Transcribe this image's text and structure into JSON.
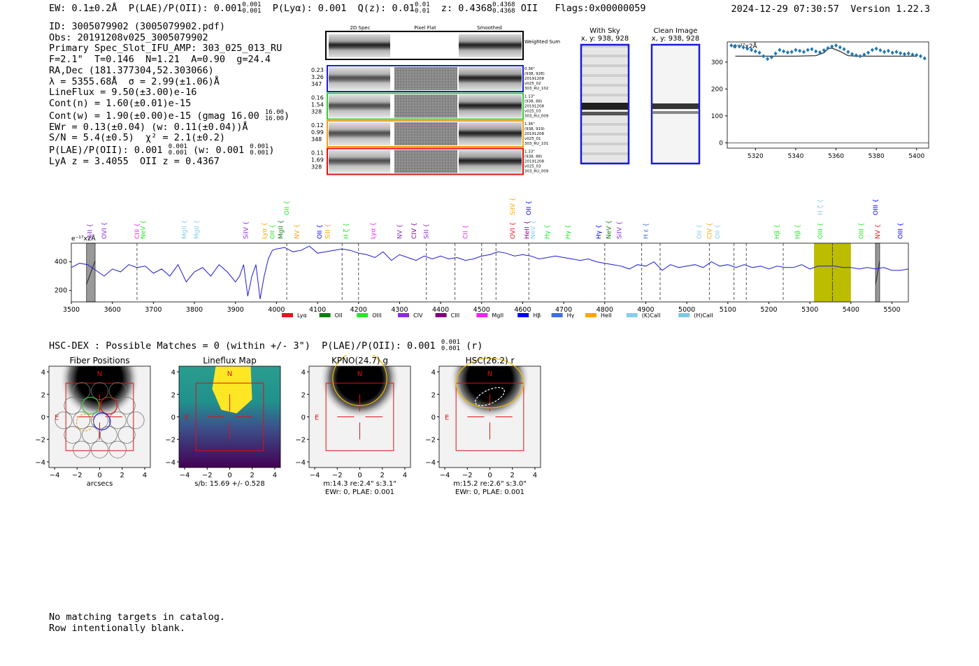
{
  "header": {
    "ew": "EW: 0.1±0.2Å",
    "plae_label": "P(LAE)/P(OII): 0.001",
    "plae_hi": "0.001",
    "plae_lo": "0.001",
    "plya": "P(Lyα): 0.001",
    "qz_label": "Q(z): 0.01",
    "qz_hi": "0.01",
    "qz_lo": "0.01",
    "z_label": "z: 0.4368",
    "z_hi": "0.4368",
    "z_lo": "0.4368",
    "z_line": "OII",
    "flags": "Flags:0x00000059",
    "timestamp": "2024-12-29 07:30:57",
    "version": "Version 1.22.3"
  },
  "info": {
    "id": "ID: 3005079902 (3005079902.pdf)",
    "obs": "Obs: 20191208v025_3005079902",
    "primary": "Primary Spec_Slot_IFU_AMP: 303_025_013_RU",
    "fit": "F=2.1\"  T=0.146  N=1.21  A=0.90  g=24.4",
    "radec": "RA,Dec (181.377304,52.303066)",
    "lambda": "λ = 5355.68Å  σ = 2.99(±1.06)Å",
    "lineflux": "LineFlux = 9.50(±3.00)e-16",
    "contn": "Cont(n) = 1.60(±0.01)e-15",
    "contw": "Cont(w) = 1.90(±0.00)e-15 (gmag 16.00",
    "contw_hi": "16.00",
    "contw_lo": "16.00",
    "ewr": "EWr = 0.13(±0.04) (w: 0.11(±0.04))Å",
    "sn": "S/N = 5.4(±0.5)  χ² = 2.1(±0.2)",
    "plae": "P(LAE)/P(OII): 0.001",
    "plae_hi": "0.001",
    "plae_lo": "0.001",
    "plae_w": "(w: 0.001",
    "plae_w_hi": "0.001",
    "plae_w_lo": "0.001",
    "lya": "LyA z = 3.4055  OII z = 0.4367"
  },
  "cutouts": {
    "headers": [
      "2D Spec",
      "Pixel Flat",
      "Smoothed"
    ],
    "weighted_sum": "Weighted Sum",
    "rows": [
      {
        "color": "#1c1cd6",
        "left": [
          "0.23",
          "3.26",
          "347"
        ],
        "right": [
          "0.36\"",
          "(938, 928)",
          "20191208",
          "v025_02",
          "303_RU_102"
        ]
      },
      {
        "color": "#33cc33",
        "left": [
          "0.16",
          "1.54",
          "328"
        ],
        "right": [
          "1.13\"",
          "(938, 88)",
          "20191208",
          "v025_03",
          "303_RU_009"
        ]
      },
      {
        "color": "#f0a020",
        "left": [
          "0.12",
          "0.99",
          "348"
        ],
        "right": [
          "1.36\"",
          "(938, 919)",
          "20191208",
          "v025_01",
          "303_RU_101"
        ]
      },
      {
        "color": "#e01010",
        "left": [
          "0.11",
          "1.69",
          "328"
        ],
        "right": [
          "1.33\"",
          "(938, 88)",
          "20191208",
          "v025_03",
          "303_RU_009"
        ]
      }
    ],
    "with_sky": "With Sky",
    "clean": "Clean Image",
    "xy": "x, y: 938, 928"
  },
  "zoom_chart": {
    "type": "scatter",
    "unit": "e⁻¹⁷x2Å",
    "xticks": [
      "5320",
      "5340",
      "5360",
      "5380",
      "5400"
    ],
    "yticks": [
      "0",
      "100",
      "200",
      "300"
    ],
    "xlim": [
      5306,
      5406
    ],
    "ylim": [
      -20,
      375
    ],
    "x": [
      5308,
      5310,
      5312,
      5314,
      5316,
      5318,
      5320,
      5322,
      5324,
      5326,
      5328,
      5330,
      5332,
      5334,
      5336,
      5338,
      5340,
      5342,
      5344,
      5346,
      5348,
      5350,
      5352,
      5354,
      5356,
      5358,
      5360,
      5362,
      5364,
      5366,
      5368,
      5370,
      5372,
      5374,
      5376,
      5378,
      5380,
      5382,
      5384,
      5386,
      5388,
      5390,
      5392,
      5394,
      5396,
      5398,
      5400,
      5402,
      5404
    ],
    "y": [
      362,
      360,
      358,
      355,
      350,
      345,
      340,
      335,
      322,
      312,
      318,
      332,
      345,
      340,
      336,
      338,
      345,
      342,
      338,
      345,
      348,
      340,
      336,
      344,
      352,
      358,
      362,
      355,
      348,
      338,
      330,
      325,
      322,
      328,
      335,
      345,
      350,
      344,
      338,
      342,
      335,
      338,
      333,
      330,
      332,
      328,
      326,
      322,
      314
    ],
    "model_x": [
      5310,
      5340,
      5350,
      5354,
      5356,
      5358,
      5362,
      5366,
      5370,
      5400
    ],
    "model_y": [
      322,
      322,
      324,
      335,
      350,
      352,
      340,
      324,
      322,
      322
    ]
  },
  "chart_data": {
    "type": "line",
    "unit": "e⁻¹⁷x2Å",
    "xlim": [
      3500,
      5540
    ],
    "ylim": [
      120,
      530
    ],
    "xticks": [
      "3500",
      "3600",
      "3700",
      "3800",
      "3900",
      "4000",
      "4100",
      "4200",
      "4300",
      "4400",
      "4500",
      "4600",
      "4700",
      "4800",
      "4900",
      "5000",
      "5100",
      "5200",
      "5300",
      "5400",
      "5500"
    ],
    "yticks": [
      "200",
      "400"
    ],
    "x": [
      3500,
      3520,
      3540,
      3560,
      3580,
      3600,
      3620,
      3640,
      3660,
      3680,
      3700,
      3720,
      3740,
      3760,
      3780,
      3800,
      3820,
      3840,
      3860,
      3880,
      3900,
      3910,
      3920,
      3930,
      3940,
      3950,
      3960,
      3970,
      3980,
      3990,
      4000,
      4020,
      4040,
      4060,
      4080,
      4100,
      4120,
      4140,
      4160,
      4180,
      4200,
      4220,
      4240,
      4260,
      4280,
      4300,
      4320,
      4340,
      4360,
      4380,
      4400,
      4420,
      4440,
      4460,
      4480,
      4500,
      4520,
      4540,
      4560,
      4580,
      4600,
      4620,
      4640,
      4660,
      4680,
      4700,
      4720,
      4740,
      4760,
      4780,
      4800,
      4820,
      4840,
      4860,
      4880,
      4900,
      4920,
      4940,
      4960,
      4980,
      5000,
      5020,
      5040,
      5060,
      5080,
      5100,
      5120,
      5140,
      5160,
      5180,
      5200,
      5220,
      5240,
      5260,
      5280,
      5300,
      5320,
      5340,
      5360,
      5380,
      5400,
      5420,
      5440,
      5460,
      5480,
      5500,
      5520,
      5540
    ],
    "y": [
      360,
      390,
      380,
      340,
      300,
      350,
      330,
      380,
      360,
      370,
      320,
      350,
      300,
      380,
      260,
      330,
      360,
      300,
      380,
      330,
      260,
      300,
      380,
      160,
      300,
      380,
      140,
      300,
      420,
      480,
      490,
      500,
      470,
      480,
      510,
      460,
      470,
      480,
      490,
      480,
      460,
      450,
      430,
      470,
      410,
      450,
      430,
      410,
      440,
      420,
      440,
      420,
      430,
      410,
      420,
      440,
      450,
      470,
      460,
      440,
      450,
      440,
      420,
      430,
      440,
      430,
      420,
      410,
      420,
      400,
      390,
      380,
      370,
      350,
      380,
      370,
      400,
      340,
      380,
      360,
      370,
      380,
      360,
      400,
      370,
      380,
      360,
      380,
      360,
      370,
      350,
      370,
      360,
      360,
      380,
      350,
      370,
      370,
      370,
      360,
      360,
      350,
      360,
      350,
      360,
      340,
      340,
      350
    ],
    "highlight": [
      5310,
      5400
    ],
    "gray_bands": [
      [
        3537,
        3558
      ],
      [
        5460,
        5470
      ]
    ],
    "emission_marks": [
      3660,
      4025,
      4160,
      4200,
      4365,
      4435,
      4500,
      4535,
      4615,
      4800,
      4890,
      4935,
      5055,
      5115,
      5145,
      5235,
      5355
    ],
    "legend": [
      {
        "label": "Lyα",
        "color": "#e8131f"
      },
      {
        "label": "OII",
        "color": "#127d12"
      },
      {
        "label": "OIII",
        "color": "#22e822"
      },
      {
        "label": "CIV",
        "color": "#8a2be2"
      },
      {
        "label": "CIII",
        "color": "#800080"
      },
      {
        "label": "MgII",
        "color": "#ee22ee"
      },
      {
        "label": "Hβ",
        "color": "#0000ff"
      },
      {
        "label": "Hγ",
        "color": "#3f6ee0"
      },
      {
        "label": "HeII",
        "color": "#ffa500"
      },
      {
        "label": "(K)CaII",
        "color": "#87ceeb"
      },
      {
        "label": "(H)CaII",
        "color": "#7ec8e3"
      }
    ],
    "line_labels": [
      {
        "x": 3545,
        "t": "SiII",
        "c": "#8a2be2"
      },
      {
        "x": 3580,
        "t": "OVI",
        "c": "#8a2be2"
      },
      {
        "x": 3660,
        "t": "CIII",
        "c": "#ee22ee"
      },
      {
        "x": 3675,
        "t": "NeV",
        "c": "#22e822"
      },
      {
        "x": 3775,
        "t": "MgII",
        "c": "#87ceeb"
      },
      {
        "x": 3805,
        "t": "MgII",
        "c": "#87ceeb"
      },
      {
        "x": 3925,
        "t": "SiIV",
        "c": "#8a2be2"
      },
      {
        "x": 3970,
        "t": "Lyα",
        "c": "#ffa500"
      },
      {
        "x": 3990,
        "t": "OII",
        "c": "#22e822"
      },
      {
        "x": 4010,
        "t": "MgII",
        "c": "#127d12"
      },
      {
        "x": 4050,
        "t": "NV",
        "c": "#ffa500"
      },
      {
        "x": 4105,
        "t": "OII",
        "c": "#0000ff"
      },
      {
        "x": 4125,
        "t": "SiII",
        "c": "#ffa500"
      },
      {
        "x": 4170,
        "t": "H ζ",
        "c": "#22e822"
      },
      {
        "x": 4235,
        "t": "Lyα",
        "c": "#ee22ee"
      },
      {
        "x": 4300,
        "t": "NV",
        "c": "#8a2be2"
      },
      {
        "x": 4335,
        "t": "CIV",
        "c": "#800080"
      },
      {
        "x": 4365,
        "t": "SiII",
        "c": "#8a2be2"
      },
      {
        "x": 4460,
        "t": "CII",
        "c": "#ee22ee"
      },
      {
        "x": 4575,
        "t": "OVI",
        "c": "#e8131f"
      },
      {
        "x": 4610,
        "t": "HeII",
        "c": "#800080"
      },
      {
        "x": 4625,
        "t": "NeV",
        "c": "#87ceeb"
      },
      {
        "x": 4660,
        "t": "Hγ",
        "c": "#22e822"
      },
      {
        "x": 4710,
        "t": "Hγ",
        "c": "#22e822"
      },
      {
        "x": 4785,
        "t": "Hγ",
        "c": "#0000ff"
      },
      {
        "x": 4810,
        "t": "NeV",
        "c": "#127d12"
      },
      {
        "x": 4835,
        "t": "SiIV",
        "c": "#8a2be2"
      },
      {
        "x": 4900,
        "t": "H ε",
        "c": "#3f6ee0"
      },
      {
        "x": 5030,
        "t": "OII",
        "c": "#87ceeb"
      },
      {
        "x": 5055,
        "t": "CIV",
        "c": "#ffa500"
      },
      {
        "x": 5075,
        "t": "OII",
        "c": "#87ceeb"
      },
      {
        "x": 5220,
        "t": "Hβ",
        "c": "#22e822"
      },
      {
        "x": 5270,
        "t": "Hβ",
        "c": "#22e822"
      },
      {
        "x": 5325,
        "t": "OIII",
        "c": "#22e822"
      },
      {
        "x": 5425,
        "t": "OIII",
        "c": "#22e822"
      },
      {
        "x": 5465,
        "t": "NV",
        "c": "#e8131f"
      },
      {
        "x": 5520,
        "t": "OIII",
        "c": "#0000ff"
      }
    ],
    "upper_labels": [
      {
        "x": 4025,
        "t": "OII",
        "c": "#22e822"
      },
      {
        "x": 4575,
        "t": "SiIV",
        "c": "#ffa500"
      },
      {
        "x": 4615,
        "t": "OII",
        "c": "#0000ff"
      },
      {
        "x": 5325,
        "t": "H ζ",
        "c": "#87ceeb"
      },
      {
        "x": 5460,
        "t": "OIII",
        "c": "#0000ff"
      }
    ]
  },
  "hsc": {
    "label": "HSC-DEX : Possible Matches = 0 (within +/- 3\")  P(LAE)/P(OII): 0.001",
    "hi": "0.001",
    "lo": "0.001",
    "band": "(r)"
  },
  "thumbs": [
    {
      "title": "Fiber Positions",
      "caption": "arcsecs",
      "caption2": ""
    },
    {
      "title": "Lineflux Map",
      "caption": "s/b: 15.69 +/- 0.528",
      "caption2": ""
    },
    {
      "title": "KPNO(24.7) g",
      "caption": "m:14.3  re:2.4\"  s:3.1\"",
      "caption2": "EWr: 0, PLAE: 0.001"
    },
    {
      "title": "HSC(26.2) r",
      "caption": "m:15.2  re:2.6\"  s:3.0\"",
      "caption2": "EWr: 0, PLAE: 0.001"
    }
  ],
  "thumb_ticks": [
    "4",
    "2",
    "0",
    "−2",
    "−4"
  ],
  "thumb_xticks": [
    "−4",
    "−2",
    "0",
    "2",
    "4"
  ],
  "compass": {
    "n": "N",
    "e": "E"
  },
  "footer": {
    "line1": "No matching targets in catalog.",
    "line2": "Row intentionally blank."
  }
}
